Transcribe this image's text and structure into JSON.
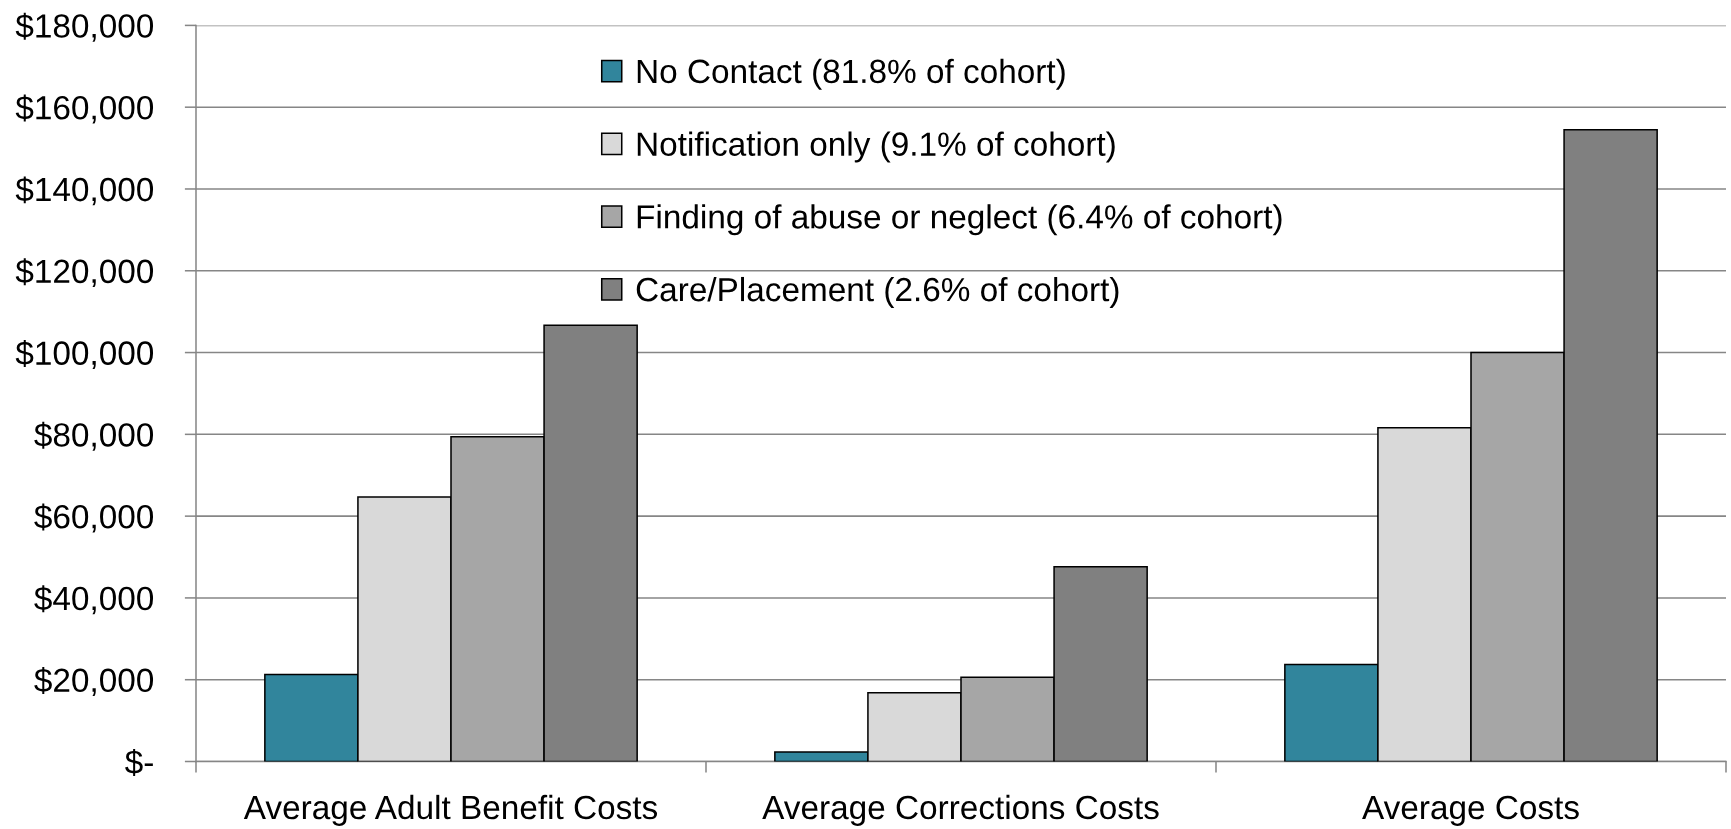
{
  "chart_data": {
    "type": "bar",
    "categories": [
      "Average Adult Benefit Costs",
      "Average Corrections Costs",
      "Average Costs"
    ],
    "series": [
      {
        "name": "No Contact (81.8% of cohort)",
        "color": "#31859c",
        "values": [
          21300,
          2300,
          23700
        ]
      },
      {
        "name": "Notification only (9.1% of cohort)",
        "color": "#d9d9d9",
        "values": [
          64700,
          16800,
          81600
        ]
      },
      {
        "name": "Finding of abuse or neglect (6.4% of cohort)",
        "color": "#a6a6a6",
        "values": [
          79400,
          20600,
          100000
        ]
      },
      {
        "name": "Care/Placement (2.6% of cohort)",
        "color": "#808080",
        "values": [
          106700,
          47600,
          154500
        ]
      }
    ],
    "ylim": [
      0,
      180000
    ],
    "yticks": [
      {
        "value": 0,
        "label": "$-"
      },
      {
        "value": 20000,
        "label": "$20,000"
      },
      {
        "value": 40000,
        "label": "$40,000"
      },
      {
        "value": 60000,
        "label": "$60,000"
      },
      {
        "value": 80000,
        "label": "$80,000"
      },
      {
        "value": 100000,
        "label": "$100,000"
      },
      {
        "value": 120000,
        "label": "$120,000"
      },
      {
        "value": 140000,
        "label": "$140,000"
      },
      {
        "value": 160000,
        "label": "$160,000"
      },
      {
        "value": 180000,
        "label": "$180,000"
      }
    ],
    "grid": "y",
    "legend": "top"
  }
}
